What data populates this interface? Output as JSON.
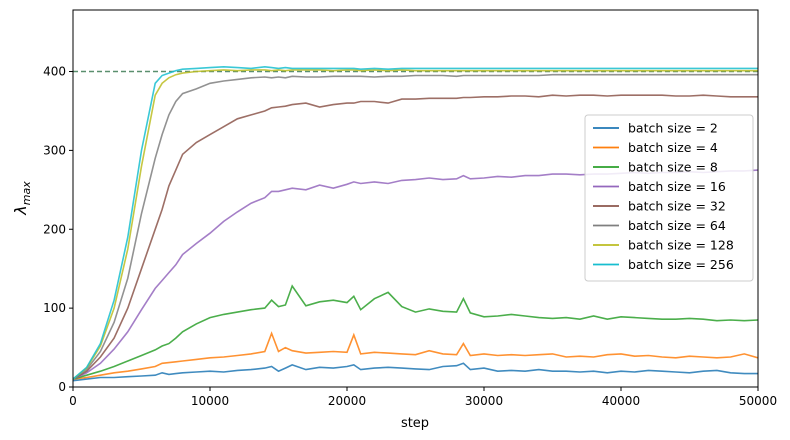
{
  "chart_data": {
    "type": "line",
    "xlabel": "step",
    "ylabel_main": "λ",
    "ylabel_sub": "max",
    "xlim": [
      0,
      50000
    ],
    "ylim": [
      0,
      478
    ],
    "x_ticks": [
      0,
      10000,
      20000,
      30000,
      40000,
      50000
    ],
    "x_tick_labels": [
      "0",
      "10000",
      "20000",
      "30000",
      "40000",
      "50000"
    ],
    "y_ticks": [
      0,
      100,
      200,
      300,
      400
    ],
    "y_tick_labels": [
      "0",
      "100",
      "200",
      "300",
      "400"
    ],
    "grid": false,
    "legend_position": "center-right",
    "reference_line": {
      "y": 400,
      "style": "dashed",
      "color": "#5a8f6e"
    },
    "x": [
      0,
      1000,
      2000,
      3000,
      4000,
      5000,
      6000,
      6500,
      7000,
      7500,
      8000,
      9000,
      10000,
      11000,
      12000,
      13000,
      14000,
      14500,
      15000,
      15500,
      16000,
      17000,
      18000,
      19000,
      20000,
      20500,
      21000,
      22000,
      23000,
      24000,
      25000,
      26000,
      27000,
      28000,
      28500,
      29000,
      30000,
      31000,
      32000,
      33000,
      34000,
      35000,
      36000,
      37000,
      38000,
      39000,
      40000,
      41000,
      42000,
      43000,
      44000,
      45000,
      46000,
      47000,
      48000,
      49000,
      50000
    ],
    "series": [
      {
        "name": "batch size = 2",
        "color": "#1f77b4",
        "values": [
          8,
          10,
          12,
          12,
          13,
          14,
          15,
          18,
          16,
          17,
          18,
          19,
          20,
          19,
          21,
          22,
          24,
          26,
          20,
          24,
          28,
          22,
          25,
          24,
          26,
          28,
          22,
          24,
          25,
          24,
          23,
          22,
          26,
          27,
          30,
          22,
          24,
          20,
          21,
          20,
          22,
          20,
          20,
          19,
          20,
          18,
          20,
          19,
          21,
          20,
          19,
          18,
          20,
          21,
          18,
          17,
          17
        ]
      },
      {
        "name": "batch size = 4",
        "color": "#ff7f0e",
        "values": [
          10,
          12,
          15,
          18,
          20,
          23,
          26,
          30,
          31,
          32,
          33,
          35,
          37,
          38,
          40,
          42,
          45,
          68,
          45,
          50,
          46,
          43,
          44,
          45,
          44,
          66,
          42,
          44,
          43,
          42,
          41,
          46,
          42,
          41,
          55,
          40,
          42,
          40,
          41,
          40,
          41,
          42,
          38,
          39,
          38,
          41,
          42,
          39,
          40,
          38,
          37,
          39,
          38,
          37,
          38,
          42,
          37
        ]
      },
      {
        "name": "batch size = 8",
        "color": "#2ca02c",
        "values": [
          10,
          15,
          20,
          26,
          33,
          40,
          47,
          52,
          55,
          62,
          70,
          80,
          88,
          92,
          95,
          98,
          100,
          110,
          102,
          104,
          128,
          103,
          108,
          110,
          107,
          115,
          98,
          112,
          120,
          102,
          95,
          99,
          96,
          95,
          112,
          94,
          89,
          90,
          92,
          90,
          88,
          87,
          88,
          86,
          90,
          86,
          89,
          88,
          87,
          86,
          86,
          87,
          86,
          84,
          85,
          84,
          85
        ]
      },
      {
        "name": "batch size = 16",
        "color": "#9467bd",
        "values": [
          10,
          18,
          30,
          48,
          70,
          98,
          125,
          135,
          145,
          155,
          168,
          182,
          195,
          210,
          222,
          233,
          240,
          248,
          248,
          250,
          252,
          250,
          256,
          252,
          257,
          260,
          258,
          260,
          258,
          262,
          263,
          265,
          263,
          264,
          268,
          264,
          265,
          267,
          266,
          268,
          268,
          270,
          270,
          269,
          270,
          270,
          271,
          272,
          271,
          272,
          272,
          273,
          272,
          273,
          274,
          274,
          275
        ]
      },
      {
        "name": "batch size = 32",
        "color": "#8c564b",
        "values": [
          10,
          20,
          38,
          62,
          100,
          150,
          200,
          225,
          255,
          275,
          295,
          310,
          320,
          330,
          340,
          345,
          350,
          354,
          355,
          356,
          358,
          360,
          355,
          358,
          360,
          360,
          362,
          362,
          360,
          365,
          365,
          366,
          366,
          366,
          367,
          367,
          368,
          368,
          369,
          369,
          368,
          370,
          369,
          370,
          370,
          369,
          370,
          370,
          370,
          370,
          369,
          369,
          370,
          369,
          368,
          368,
          368
        ]
      },
      {
        "name": "batch size = 64",
        "color": "#7f7f7f",
        "values": [
          10,
          22,
          45,
          82,
          138,
          220,
          290,
          320,
          345,
          362,
          372,
          378,
          385,
          388,
          390,
          392,
          393,
          392,
          393,
          392,
          394,
          393,
          393,
          394,
          394,
          394,
          394,
          393,
          394,
          394,
          395,
          395,
          395,
          394,
          395,
          395,
          395,
          395,
          395,
          395,
          395,
          396,
          396,
          396,
          396,
          396,
          396,
          396,
          396,
          396,
          396,
          396,
          396,
          396,
          396,
          396,
          396
        ]
      },
      {
        "name": "batch size = 128",
        "color": "#bcbd22",
        "values": [
          10,
          24,
          52,
          100,
          175,
          280,
          370,
          385,
          392,
          396,
          398,
          400,
          401,
          402,
          401,
          402,
          402,
          401,
          402,
          401,
          402,
          402,
          402,
          401,
          402,
          402,
          401,
          402,
          401,
          402,
          401,
          401,
          401,
          401,
          401,
          401,
          401,
          401,
          401,
          401,
          401,
          401,
          401,
          401,
          401,
          401,
          401,
          401,
          401,
          401,
          401,
          401,
          401,
          401,
          401,
          401,
          401
        ]
      },
      {
        "name": "batch size = 256",
        "color": "#17becf",
        "values": [
          10,
          25,
          55,
          110,
          190,
          300,
          385,
          395,
          398,
          401,
          403,
          404,
          405,
          406,
          405,
          404,
          406,
          405,
          404,
          405,
          404,
          404,
          404,
          404,
          404,
          404,
          403,
          404,
          403,
          404,
          404,
          404,
          404,
          404,
          404,
          404,
          404,
          404,
          404,
          404,
          404,
          404,
          404,
          404,
          404,
          404,
          404,
          404,
          404,
          404,
          404,
          404,
          404,
          404,
          404,
          404,
          404
        ]
      }
    ]
  }
}
